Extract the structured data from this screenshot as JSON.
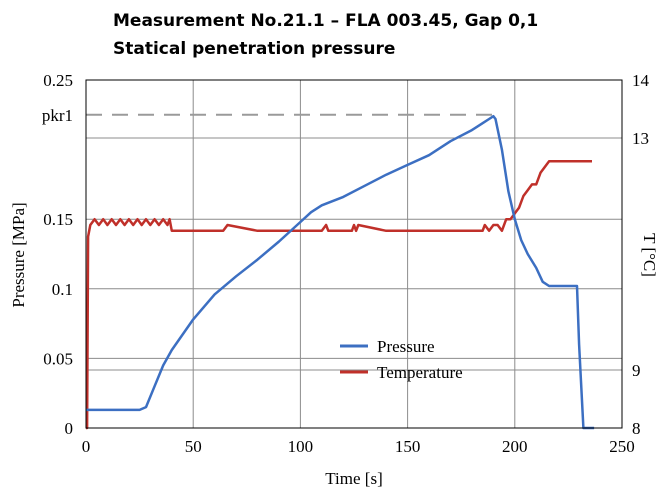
{
  "chart_data": {
    "type": "line",
    "title": "Measurement No.21.1 – FLA 003.45, Gap 0,1",
    "subtitle": "Statical penetration pressure",
    "xlabel": "Time [s]",
    "ylabel": "Pressure [MPa]",
    "y2label": "T [°C]",
    "xlim": [
      0,
      250
    ],
    "ylim": [
      0,
      0.25
    ],
    "y2lim": [
      8,
      14
    ],
    "x_ticks": [
      "0",
      "50",
      "100",
      "150",
      "200",
      "250"
    ],
    "y_ticks": [
      "0",
      "0.05",
      "0.1",
      "0.15",
      "0.25"
    ],
    "y_ref_label": "pkr1",
    "y_ref_value": 0.225,
    "y2_ticks": [
      "8",
      "9",
      "13",
      "14"
    ],
    "grid": true,
    "legend_position": "lower-center",
    "series": [
      {
        "name": "Pressure",
        "color": "#3c6fc2",
        "axis": "left",
        "x": [
          0,
          5,
          15,
          25,
          28,
          32,
          36,
          40,
          50,
          60,
          70,
          80,
          90,
          100,
          105,
          110,
          120,
          130,
          140,
          150,
          160,
          170,
          180,
          185,
          188,
          190,
          191,
          194,
          197,
          200,
          203,
          206,
          210,
          213,
          216,
          220,
          225,
          229,
          230,
          232,
          237
        ],
        "y": [
          0.013,
          0.013,
          0.013,
          0.013,
          0.015,
          0.03,
          0.045,
          0.056,
          0.078,
          0.096,
          0.109,
          0.121,
          0.134,
          0.148,
          0.155,
          0.16,
          0.166,
          0.174,
          0.182,
          0.189,
          0.196,
          0.206,
          0.214,
          0.219,
          0.222,
          0.224,
          0.222,
          0.2,
          0.17,
          0.15,
          0.135,
          0.125,
          0.115,
          0.105,
          0.102,
          0.102,
          0.102,
          0.102,
          0.06,
          0.0,
          0.0
        ]
      },
      {
        "name": "Temperature",
        "color": "#c0302a",
        "axis": "right",
        "x": [
          0,
          0.5,
          1,
          2,
          4,
          6,
          8,
          10,
          12,
          14,
          16,
          18,
          20,
          22,
          24,
          26,
          28,
          30,
          32,
          34,
          36,
          38,
          39,
          40,
          42,
          50,
          60,
          64,
          66,
          80,
          90,
          100,
          110,
          112,
          113,
          120,
          124,
          125,
          126,
          127,
          140,
          150,
          160,
          170,
          180,
          185,
          186,
          188,
          190,
          192,
          194,
          196,
          198,
          200,
          202,
          204,
          206,
          208,
          210,
          212,
          214,
          216,
          218,
          220,
          230,
          236
        ],
        "y": [
          8.0,
          8.0,
          11.3,
          11.5,
          11.6,
          11.5,
          11.6,
          11.5,
          11.6,
          11.5,
          11.6,
          11.5,
          11.6,
          11.5,
          11.6,
          11.5,
          11.6,
          11.5,
          11.6,
          11.5,
          11.6,
          11.5,
          11.6,
          11.4,
          11.4,
          11.4,
          11.4,
          11.4,
          11.5,
          11.4,
          11.4,
          11.4,
          11.4,
          11.5,
          11.4,
          11.4,
          11.4,
          11.5,
          11.4,
          11.5,
          11.4,
          11.4,
          11.4,
          11.4,
          11.4,
          11.4,
          11.5,
          11.4,
          11.5,
          11.5,
          11.4,
          11.6,
          11.6,
          11.7,
          11.8,
          12.0,
          12.1,
          12.2,
          12.2,
          12.4,
          12.5,
          12.6,
          12.6,
          12.6,
          12.6,
          12.6
        ]
      }
    ]
  }
}
